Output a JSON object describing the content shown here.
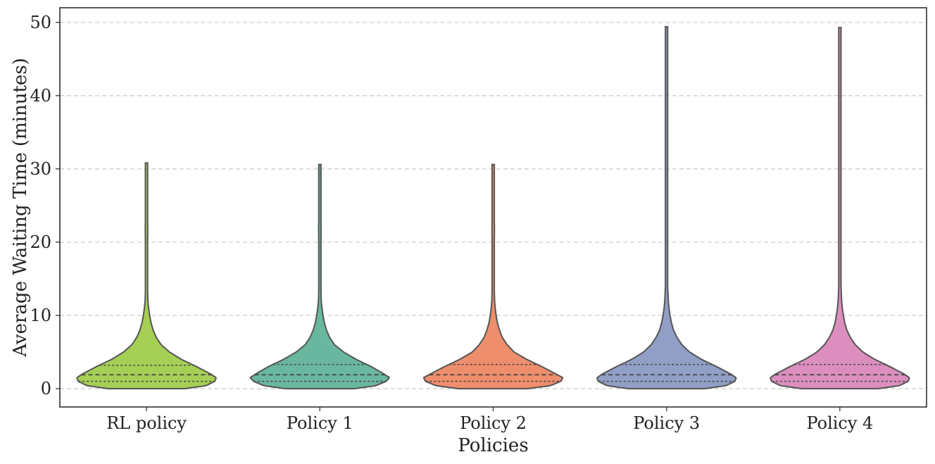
{
  "chart_data": {
    "type": "violin",
    "title": "",
    "xlabel": "Policies",
    "ylabel": "Average Waiting Time (minutes)",
    "ylim": [
      -2.5,
      52
    ],
    "yticks": [
      0,
      10,
      20,
      30,
      40,
      50
    ],
    "grid": "horizontal-dashed",
    "categories": [
      "RL policy",
      "Policy 1",
      "Policy 2",
      "Policy 3",
      "Policy 4"
    ],
    "colors": [
      "#a6cf55",
      "#6ab7a0",
      "#ee8e6c",
      "#919fc6",
      "#dc8fbf"
    ],
    "series": [
      {
        "name": "RL policy",
        "min": 0,
        "max": 30.8,
        "q1": 1.0,
        "median": 1.9,
        "q3": 3.2,
        "density_y": [
          0,
          0.4,
          1.0,
          1.5,
          2,
          3,
          4,
          5,
          6,
          7,
          8,
          9,
          10,
          11,
          12,
          14,
          17,
          20,
          22,
          24,
          26,
          28,
          30.8
        ],
        "density_w": [
          0.55,
          0.85,
          0.98,
          1.0,
          0.92,
          0.72,
          0.5,
          0.33,
          0.21,
          0.14,
          0.095,
          0.065,
          0.045,
          0.03,
          0.02,
          0.014,
          0.012,
          0.016,
          0.018,
          0.012,
          0.015,
          0.01,
          0.004
        ]
      },
      {
        "name": "Policy 1",
        "min": 0,
        "max": 30.6,
        "q1": 1.0,
        "median": 1.9,
        "q3": 3.3,
        "density_y": [
          0,
          0.4,
          1.0,
          1.5,
          2,
          3,
          4,
          5,
          6,
          7,
          8,
          9,
          10,
          11,
          12,
          14,
          17,
          20,
          22,
          24,
          26,
          28,
          30.6
        ],
        "density_w": [
          0.5,
          0.8,
          0.95,
          1.0,
          0.92,
          0.74,
          0.52,
          0.34,
          0.21,
          0.14,
          0.095,
          0.065,
          0.045,
          0.03,
          0.02,
          0.014,
          0.012,
          0.016,
          0.018,
          0.012,
          0.015,
          0.01,
          0.004
        ]
      },
      {
        "name": "Policy 2",
        "min": 0,
        "max": 30.6,
        "q1": 1.0,
        "median": 1.9,
        "q3": 3.3,
        "density_y": [
          0,
          0.4,
          1.0,
          1.5,
          2,
          3,
          4,
          5,
          6,
          7,
          8,
          9,
          10,
          11,
          12,
          14,
          17,
          20,
          22,
          24,
          26,
          28,
          30.6
        ],
        "density_w": [
          0.5,
          0.82,
          0.97,
          1.0,
          0.9,
          0.7,
          0.48,
          0.3,
          0.2,
          0.13,
          0.09,
          0.06,
          0.042,
          0.028,
          0.02,
          0.014,
          0.012,
          0.016,
          0.018,
          0.012,
          0.015,
          0.01,
          0.004
        ]
      },
      {
        "name": "Policy 3",
        "min": 0,
        "max": 49.4,
        "q1": 1.0,
        "median": 1.9,
        "q3": 3.3,
        "density_y": [
          0,
          0.4,
          1.0,
          1.5,
          2,
          3,
          4,
          5,
          6,
          7,
          8,
          9,
          10,
          11,
          12,
          14,
          17,
          20,
          23,
          26,
          30,
          35,
          40,
          45,
          49.4
        ],
        "density_w": [
          0.55,
          0.85,
          0.98,
          1.0,
          0.92,
          0.72,
          0.5,
          0.33,
          0.22,
          0.15,
          0.1,
          0.07,
          0.05,
          0.035,
          0.025,
          0.016,
          0.012,
          0.012,
          0.016,
          0.01,
          0.008,
          0.01,
          0.006,
          0.005,
          0.003
        ]
      },
      {
        "name": "Policy 4",
        "min": 0,
        "max": 49.3,
        "q1": 1.0,
        "median": 1.9,
        "q3": 3.3,
        "density_y": [
          0,
          0.4,
          1.0,
          1.5,
          2,
          3,
          4,
          5,
          6,
          7,
          8,
          9,
          10,
          11,
          12,
          14,
          17,
          20,
          23,
          26,
          30,
          35,
          40,
          45,
          49.3
        ],
        "density_w": [
          0.55,
          0.85,
          0.98,
          1.0,
          0.92,
          0.72,
          0.5,
          0.33,
          0.22,
          0.15,
          0.1,
          0.07,
          0.05,
          0.035,
          0.025,
          0.016,
          0.012,
          0.012,
          0.016,
          0.01,
          0.008,
          0.01,
          0.006,
          0.005,
          0.003
        ]
      }
    ]
  }
}
